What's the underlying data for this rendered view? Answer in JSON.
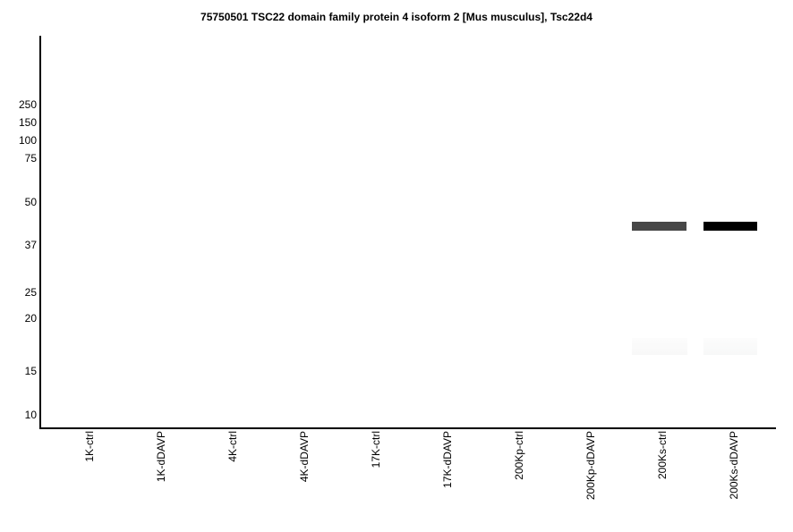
{
  "figure": {
    "title": "75750501 TSC22 domain family protein 4 isoform 2 [Mus musculus], Tsc22d4"
  },
  "chart_data": {
    "type": "gel-blot",
    "title": "75750501 TSC22 domain family protein 4 isoform 2 [Mus musculus], Tsc22d4",
    "xlabel": "",
    "ylabel": "",
    "y_axis_unit": "kDa",
    "y_axis_scale": "log-like molecular weight ladder",
    "mw_markers": [
      250,
      150,
      100,
      75,
      50,
      37,
      25,
      20,
      15,
      10
    ],
    "lanes": [
      "1K-ctrl",
      "1K-dDAVP",
      "4K-ctrl",
      "4K-dDAVP",
      "17K-ctrl",
      "17K-dDAVP",
      "200Kp-ctrl",
      "200Kp-dDAVP",
      "200Ks-ctrl",
      "200Ks-dDAVP"
    ],
    "bands": [
      {
        "lane": "200Ks-ctrl",
        "lane_index": 8,
        "mw_kda": 42,
        "intensity": "strong",
        "color": "#474747"
      },
      {
        "lane": "200Ks-dDAVP",
        "lane_index": 9,
        "mw_kda": 42,
        "intensity": "very-strong",
        "color": "#000000"
      },
      {
        "lane": "200Ks-ctrl",
        "lane_index": 8,
        "mw_kda": 17,
        "intensity": "very-faint",
        "color": "#f8f8f8"
      },
      {
        "lane": "200Ks-dDAVP",
        "lane_index": 9,
        "mw_kda": 17,
        "intensity": "very-faint",
        "color": "#f7f8f8"
      }
    ],
    "axis_color": "#000000",
    "background": "#ffffff",
    "legend": "none",
    "grid": "off"
  }
}
